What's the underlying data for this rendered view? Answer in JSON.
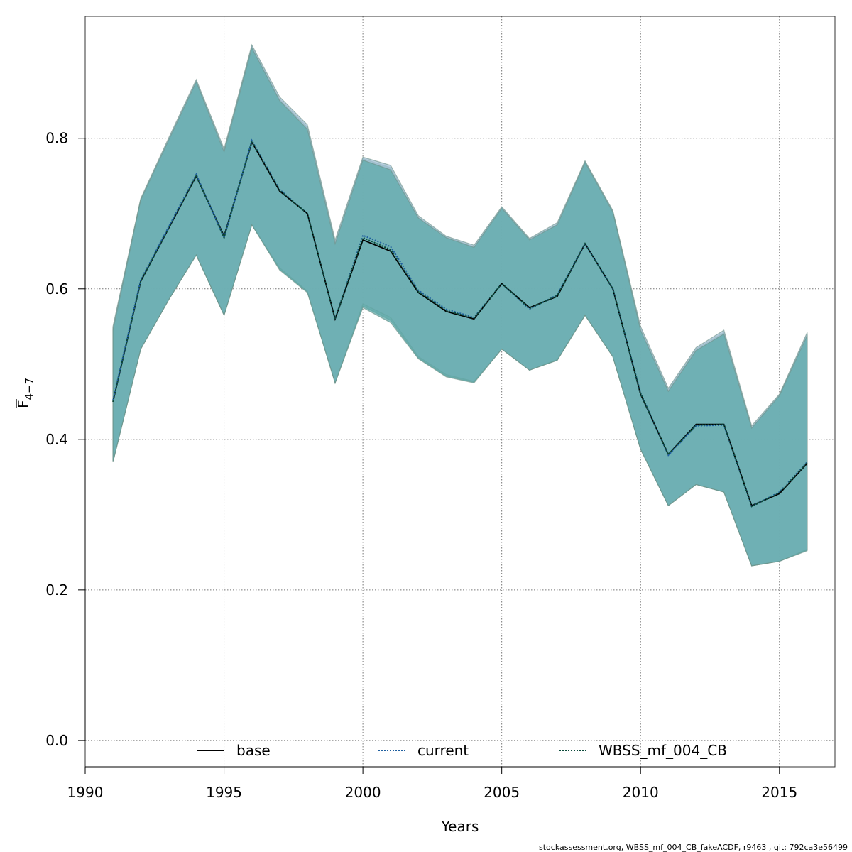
{
  "chart_data": {
    "type": "line",
    "xlabel": "Years",
    "ylabel_main": "F",
    "ylabel_sub": "4−7",
    "xlim": [
      1990,
      2017
    ],
    "ylim": [
      -0.035,
      0.962
    ],
    "grid": true,
    "x_ticks": [
      1990,
      1995,
      2000,
      2005,
      2010,
      2015
    ],
    "y_ticks": [
      0.0,
      0.2,
      0.4,
      0.6,
      0.8
    ],
    "x_tick_labels": [
      "1990",
      "1995",
      "2000",
      "2005",
      "2010",
      "2015"
    ],
    "y_tick_labels": [
      "0.0",
      "0.2",
      "0.4",
      "0.6",
      "0.8"
    ],
    "band_color": "#5fa9a9",
    "x": [
      1991,
      1992,
      1993,
      1994,
      1995,
      1996,
      1997,
      1998,
      1999,
      2000,
      2001,
      2002,
      2003,
      2004,
      2005,
      2006,
      2007,
      2008,
      2009,
      2010,
      2011,
      2012,
      2013,
      2014,
      2015,
      2016
    ],
    "series": [
      {
        "name": "base",
        "line_style": "solid",
        "color": "#000000",
        "values": [
          0.45,
          0.61,
          0.68,
          0.75,
          0.67,
          0.795,
          0.73,
          0.7,
          0.56,
          0.665,
          0.65,
          0.595,
          0.57,
          0.56,
          0.607,
          0.575,
          0.59,
          0.66,
          0.6,
          0.46,
          0.38,
          0.42,
          0.42,
          0.312,
          0.328,
          0.368
        ],
        "lower": [
          0.37,
          0.52,
          0.585,
          0.645,
          0.565,
          0.685,
          0.625,
          0.595,
          0.475,
          0.575,
          0.555,
          0.507,
          0.483,
          0.475,
          0.52,
          0.492,
          0.505,
          0.565,
          0.51,
          0.387,
          0.312,
          0.34,
          0.33,
          0.232,
          0.238,
          0.252
        ],
        "upper": [
          0.545,
          0.718,
          0.797,
          0.875,
          0.782,
          0.92,
          0.85,
          0.812,
          0.66,
          0.771,
          0.758,
          0.694,
          0.668,
          0.655,
          0.707,
          0.665,
          0.685,
          0.768,
          0.702,
          0.545,
          0.464,
          0.518,
          0.54,
          0.415,
          0.458,
          0.538
        ]
      },
      {
        "name": "current",
        "line_style": "dotted",
        "color": "#1f5f9f",
        "values": [
          0.452,
          0.612,
          0.682,
          0.752,
          0.668,
          0.797,
          0.732,
          0.7,
          0.56,
          0.671,
          0.656,
          0.598,
          0.573,
          0.562,
          0.607,
          0.573,
          0.592,
          0.66,
          0.6,
          0.462,
          0.379,
          0.418,
          0.419,
          0.311,
          0.33,
          0.37
        ],
        "lower": [
          0.37,
          0.52,
          0.585,
          0.645,
          0.565,
          0.685,
          0.628,
          0.597,
          0.475,
          0.58,
          0.562,
          0.51,
          0.486,
          0.477,
          0.52,
          0.492,
          0.506,
          0.565,
          0.51,
          0.387,
          0.312,
          0.34,
          0.33,
          0.232,
          0.238,
          0.254
        ],
        "upper": [
          0.55,
          0.72,
          0.8,
          0.878,
          0.786,
          0.924,
          0.855,
          0.818,
          0.665,
          0.775,
          0.764,
          0.697,
          0.67,
          0.658,
          0.709,
          0.667,
          0.688,
          0.77,
          0.704,
          0.55,
          0.468,
          0.522,
          0.545,
          0.418,
          0.46,
          0.542
        ]
      },
      {
        "name": "WBSS_mf_004_CB",
        "line_style": "dotted",
        "color": "#0b4a3a",
        "values": [
          0.45,
          0.61,
          0.68,
          0.75,
          0.668,
          0.796,
          0.731,
          0.7,
          0.56,
          0.668,
          0.652,
          0.596,
          0.571,
          0.561,
          0.607,
          0.574,
          0.591,
          0.66,
          0.6,
          0.461,
          0.38,
          0.419,
          0.42,
          0.311,
          0.329,
          0.369
        ],
        "lower": [
          0.37,
          0.52,
          0.585,
          0.645,
          0.565,
          0.685,
          0.626,
          0.596,
          0.475,
          0.577,
          0.558,
          0.508,
          0.484,
          0.476,
          0.52,
          0.492,
          0.505,
          0.565,
          0.51,
          0.387,
          0.312,
          0.34,
          0.33,
          0.232,
          0.238,
          0.253
        ],
        "upper": [
          0.548,
          0.719,
          0.798,
          0.876,
          0.784,
          0.922,
          0.852,
          0.815,
          0.662,
          0.773,
          0.761,
          0.695,
          0.669,
          0.656,
          0.708,
          0.666,
          0.686,
          0.769,
          0.703,
          0.547,
          0.466,
          0.52,
          0.542,
          0.416,
          0.459,
          0.54
        ]
      }
    ],
    "legend": {
      "placement": "bottom-center",
      "entries": [
        "base",
        "current",
        "WBSS_mf_004_CB"
      ]
    }
  },
  "footer_text": "stockassessment.org, WBSS_mf_004_CB_fakeACDF, r9463 , git: 792ca3e56499"
}
